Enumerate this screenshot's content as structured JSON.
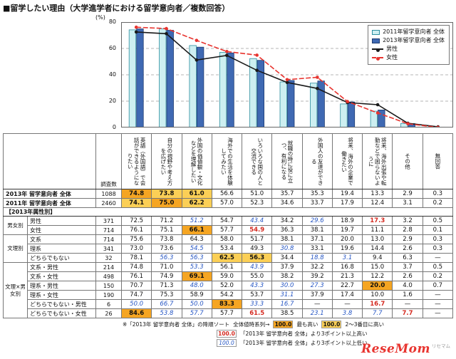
{
  "title": "■留学したい理由（大学進学者における留学意向者／複数回答）",
  "chart_data": {
    "type": "bar",
    "subtype": "grouped-bars-with-lines",
    "y_unit": "(%)",
    "ylim": [
      0,
      80
    ],
    "yticks": [
      0,
      20,
      40,
      60,
      80
    ],
    "grid": "dashed-horizontal",
    "legend_position": "top-right",
    "categories": [
      "英語（外国語）で会話ができるようになりたい",
      "自分の視野や考え方を広げたい",
      "外国の価値観・文化などを理解したい",
      "海外での生活を体験してみたい",
      "いろいろな国の人と交流できる",
      "就職の時に役に立つ、有利になる",
      "外国人の友達ができる",
      "将来、海外の企業で働きたい",
      "将来、海外出張や転勤などで困らないように",
      "その他",
      "無回答"
    ],
    "series": [
      {
        "name": "2011年留学意向者 全体",
        "kind": "bar",
        "color": "#cdeff1",
        "border": "#2d8fa0",
        "values": [
          74.1,
          75.0,
          62.2,
          57.0,
          52.3,
          34.6,
          33.7,
          17.9,
          12.4,
          3.1,
          0.2
        ]
      },
      {
        "name": "2013年留学意向者 全体",
        "kind": "bar",
        "color": "#3f69b3",
        "border": "#1d3a70",
        "values": [
          74.8,
          73.8,
          61.0,
          56.6,
          51.0,
          35.7,
          35.3,
          19.4,
          13.3,
          2.9,
          0.3
        ]
      },
      {
        "name": "男性",
        "kind": "line",
        "style": "solid",
        "color": "#1a1a1a",
        "values": [
          72.5,
          71.2,
          51.2,
          54.7,
          43.4,
          34.2,
          29.6,
          18.9,
          17.3,
          3.2,
          0.5
        ]
      },
      {
        "name": "女性",
        "kind": "line",
        "style": "dashed",
        "color": "#e8342f",
        "values": [
          76.1,
          75.1,
          66.1,
          57.7,
          54.9,
          36.3,
          38.1,
          19.7,
          11.1,
          2.8,
          0.1
        ]
      }
    ]
  },
  "table": {
    "count_header": "調査数",
    "section_label": "【2013年属性別】",
    "rows": [
      {
        "label": "2013年 留学意向者  全体",
        "n": "1088",
        "overall": true,
        "values": [
          "74.8",
          "73.8",
          "61.0",
          "56.6",
          "51.0",
          "35.7",
          "35.3",
          "19.4",
          "13.3",
          "2.9",
          "0.3"
        ],
        "styles": [
          "hi",
          "hi2",
          "hi2",
          "",
          "",
          "",
          "",
          "",
          "",
          "",
          ""
        ]
      },
      {
        "label": "2011年 留学意向者  全体",
        "n": "2460",
        "overall": true,
        "values": [
          "74.1",
          "75.0",
          "62.2",
          "57.0",
          "52.3",
          "34.6",
          "33.7",
          "17.9",
          "12.4",
          "3.1",
          "0.2"
        ],
        "styles": [
          "hi2",
          "hi",
          "hi2",
          "",
          "",
          "",
          "",
          "",
          "",
          "",
          ""
        ]
      },
      {
        "group": "男女別",
        "span": 2,
        "section_before": true,
        "label": "男性",
        "n": "371",
        "values": [
          "72.5",
          "71.2",
          "51.2",
          "54.7",
          "43.4",
          "34.2",
          "29.6",
          "18.9",
          "17.3",
          "3.2",
          "0.5"
        ],
        "styles": [
          "",
          "",
          "lo",
          "",
          "lo",
          "",
          "lo",
          "",
          "up",
          "",
          ""
        ]
      },
      {
        "label": "女性",
        "n": "714",
        "values": [
          "76.1",
          "75.1",
          "66.1",
          "57.7",
          "54.9",
          "36.3",
          "38.1",
          "19.7",
          "11.1",
          "2.8",
          "0.1"
        ],
        "styles": [
          "",
          "",
          "hi",
          "",
          "up",
          "",
          "",
          "",
          "",
          "",
          ""
        ]
      },
      {
        "group": "文理別",
        "span": 3,
        "label": "文系",
        "n": "714",
        "values": [
          "75.6",
          "73.8",
          "64.3",
          "58.0",
          "51.7",
          "38.1",
          "37.1",
          "20.0",
          "13.0",
          "2.9",
          "0.3"
        ],
        "styles": [
          "",
          "",
          "",
          "",
          "",
          "",
          "",
          "",
          "",
          "",
          ""
        ]
      },
      {
        "label": "理系",
        "n": "341",
        "values": [
          "73.0",
          "73.6",
          "54.5",
          "53.4",
          "49.3",
          "30.8",
          "33.1",
          "19.6",
          "14.4",
          "2.6",
          "0.3"
        ],
        "styles": [
          "",
          "",
          "lo",
          "",
          "",
          "lo",
          "",
          "",
          "",
          "",
          ""
        ]
      },
      {
        "label": "どちらでもない",
        "n": "32",
        "values": [
          "78.1",
          "56.3",
          "56.3",
          "62.5",
          "56.3",
          "34.4",
          "18.8",
          "3.1",
          "9.4",
          "6.3",
          "—"
        ],
        "styles": [
          "",
          "lo",
          "lo",
          "hi2",
          "hi2",
          "",
          "lo",
          "lo",
          "",
          "",
          ""
        ]
      },
      {
        "group": "文理×男女別",
        "span": 6,
        "label": "文系・男性",
        "n": "214",
        "values": [
          "74.8",
          "71.0",
          "53.3",
          "56.1",
          "43.9",
          "37.9",
          "32.2",
          "16.8",
          "15.0",
          "3.7",
          "0.5"
        ],
        "styles": [
          "",
          "",
          "lo",
          "",
          "lo",
          "",
          "",
          "",
          "",
          "",
          ""
        ]
      },
      {
        "label": "文系・女性",
        "n": "498",
        "values": [
          "76.1",
          "74.9",
          "69.1",
          "59.0",
          "55.0",
          "38.2",
          "39.2",
          "21.3",
          "12.2",
          "2.6",
          "0.2"
        ],
        "styles": [
          "",
          "",
          "hi",
          "",
          "",
          "",
          "",
          "",
          "",
          "",
          ""
        ]
      },
      {
        "label": "理系・男性",
        "n": "150",
        "values": [
          "70.7",
          "71.3",
          "48.0",
          "52.0",
          "43.3",
          "30.0",
          "27.3",
          "22.7",
          "20.0",
          "4.0",
          "0.7"
        ],
        "styles": [
          "",
          "",
          "lo",
          "",
          "lo",
          "lo",
          "lo",
          "",
          "hi",
          "",
          ""
        ]
      },
      {
        "label": "理系・女性",
        "n": "190",
        "values": [
          "74.7",
          "75.3",
          "58.9",
          "54.2",
          "53.7",
          "31.1",
          "37.9",
          "17.4",
          "10.0",
          "1.6",
          "—"
        ],
        "styles": [
          "",
          "",
          "",
          "",
          "",
          "lo",
          "",
          "",
          "",
          "",
          ""
        ]
      },
      {
        "label": "どちらでもない・男性",
        "n": "6",
        "values": [
          "50.0",
          "66.7",
          "50.0",
          "83.3",
          "33.3",
          "16.7",
          "—",
          "—",
          "16.7",
          "—",
          "—"
        ],
        "styles": [
          "lo",
          "lo",
          "lo",
          "hi",
          "lo",
          "lo",
          "",
          "",
          "up",
          "",
          ""
        ]
      },
      {
        "label": "どちらでもない・女性",
        "n": "26",
        "values": [
          "84.6",
          "53.8",
          "57.7",
          "57.7",
          "61.5",
          "38.5",
          "23.1",
          "3.8",
          "7.7",
          "7.7",
          "—"
        ],
        "styles": [
          "hi",
          "lo",
          "lo",
          "",
          "up",
          "",
          "lo",
          "lo",
          "lo",
          "up",
          ""
        ]
      }
    ]
  },
  "footer": {
    "sort_note": "※「2013年 留学意向者 全体」の降順ソート",
    "series_label": "全体値時系列→",
    "sample": "100.0",
    "hi_label": "最も高い",
    "hi2_label": "2〜3番目に高い",
    "up_note": "「2013年 留学意向者 全体」より3ポイント以上高い",
    "lo_note": "「2013年 留学意向者 全体」より3ポイント以上低い"
  },
  "logo": {
    "text": "ReseMom",
    "kana": "リセマム"
  }
}
